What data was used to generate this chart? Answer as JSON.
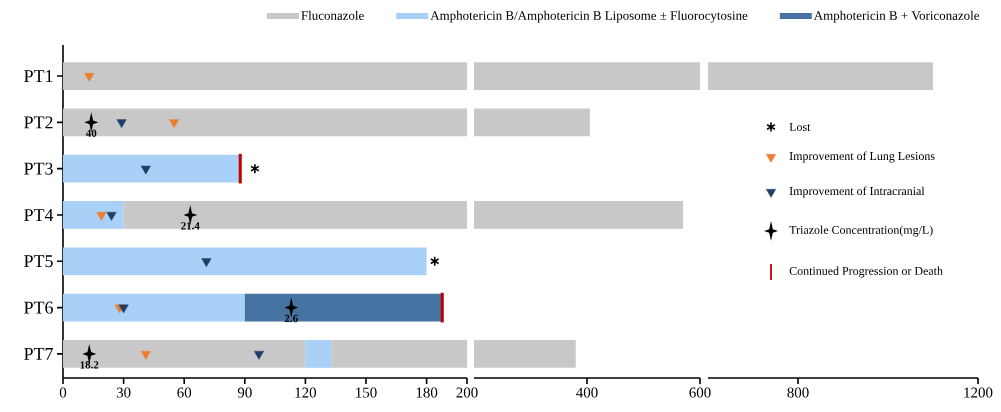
{
  "chart_data": [
    {
      "type": "bar",
      "orientation": "horizontal",
      "categories": [
        "PT1",
        "PT2",
        "PT3",
        "PT4",
        "PT5",
        "PT6",
        "PT7"
      ],
      "xlim": [
        0,
        200
      ],
      "xticks": [
        0,
        30,
        60,
        90,
        120,
        150,
        180,
        200
      ],
      "legend": "top",
      "series": [
        {
          "name": "Fluconazole",
          "color": "#c8c8c8",
          "values": [
            1100,
            405,
            null,
            null,
            null,
            null,
            120
          ],
          "base": [
            0,
            0,
            null,
            null,
            null,
            null,
            0
          ]
        },
        {
          "name": "Amphotericin B/Amphotericin B Liposome ± Fluorocytosine",
          "color": "#a9d1f7",
          "values": [
            null,
            null,
            88,
            30,
            180,
            90,
            13
          ],
          "base": [
            null,
            null,
            0,
            0,
            0,
            0,
            120
          ]
        },
        {
          "name": "Amphotericin B + Voriconazole",
          "color": "#4773a3",
          "values": [
            null,
            null,
            null,
            null,
            null,
            98,
            null
          ],
          "base": [
            null,
            null,
            null,
            null,
            null,
            90,
            null
          ]
        },
        {
          "color": "#c8c8c8",
          "values": [
            null,
            null,
            null,
            540,
            null,
            null,
            247
          ],
          "base": [
            null,
            null,
            null,
            30,
            null,
            null,
            133
          ]
        },
        {
          "type": "scatter",
          "name": "Lost",
          "color": "#000000",
          "marker": "cross",
          "x": [
            "PT3",
            "PT5"
          ],
          "values": [
            95,
            184
          ]
        },
        {
          "type": "scatter",
          "name": "Improvement of Lung Lesions",
          "color": "#ed7d31",
          "marker": "triangle",
          "x": [
            "PT1",
            "PT2",
            "PT4",
            "PT6",
            "PT7"
          ],
          "values": [
            13,
            55,
            19,
            28,
            41
          ]
        },
        {
          "type": "scatter",
          "name": "Improvement of Intracranial",
          "color": "#1f3f66",
          "marker": "triangle",
          "x": [
            "PT2",
            "PT3",
            "PT4",
            "PT5",
            "PT6",
            "PT7"
          ],
          "values": [
            29,
            41,
            24,
            71,
            30,
            97
          ]
        },
        {
          "type": "scatter",
          "name": "Triazole Concentration(mg/L)",
          "color": "#000000",
          "marker": "star",
          "x": [
            "PT2",
            "PT4",
            "PT6",
            "PT7"
          ],
          "values": [
            14,
            63,
            113,
            13
          ]
        },
        {
          "type": "bar",
          "name": "Continued Progression or Death",
          "color": "#c00000",
          "values": [
            null,
            null,
            1.5,
            null,
            null,
            1.5,
            null
          ],
          "base": [
            null,
            null,
            87,
            null,
            null,
            187,
            null
          ]
        }
      ],
      "annotations": [
        {
          "text": "40",
          "x": 14,
          "y": "PT2"
        },
        {
          "text": "21.4",
          "x": 63,
          "y": "PT4"
        },
        {
          "text": "2.6",
          "x": 113,
          "y": "PT6"
        },
        {
          "text": "18.2",
          "x": 13,
          "y": "PT7"
        }
      ]
    },
    {
      "type": "bar",
      "orientation": "horizontal",
      "categories": [
        null,
        null,
        null,
        null,
        null,
        null,
        null
      ],
      "xlim": [
        200,
        600
      ],
      "xticks": [
        400,
        600
      ],
      "tick_labels": "x",
      "series": [
        {
          "color": "#c8c8c8",
          "values": [
            1100,
            405,
            null,
            540,
            null,
            null,
            247
          ],
          "base": [
            0,
            0,
            null,
            30,
            null,
            null,
            133
          ]
        }
      ]
    },
    {
      "type": "bar",
      "orientation": "horizontal",
      "categories": [
        null,
        null,
        null,
        null,
        null,
        null,
        null
      ],
      "xlim": [
        600,
        1200
      ],
      "xticks": [
        800,
        1200
      ],
      "tick_labels": "x",
      "series": [
        {
          "color": "#c8c8c8",
          "values": [
            1100,
            null,
            null,
            null,
            null,
            null,
            null
          ],
          "base": [
            0,
            null,
            null,
            null,
            null,
            null,
            null
          ]
        }
      ]
    }
  ]
}
